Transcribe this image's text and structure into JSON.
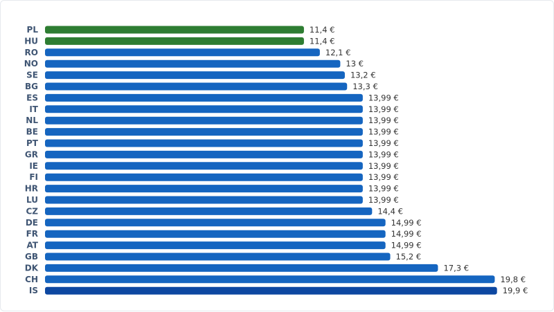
{
  "chart_data": {
    "type": "bar",
    "orientation": "horizontal",
    "title": "",
    "xlabel": "",
    "ylabel": "",
    "xlim": [
      0,
      20
    ],
    "grid": false,
    "legend": "none",
    "unit": "€",
    "categories": [
      "PL",
      "HU",
      "RO",
      "NO",
      "SE",
      "BG",
      "ES",
      "IT",
      "NL",
      "BE",
      "PT",
      "GR",
      "IE",
      "FI",
      "HR",
      "LU",
      "CZ",
      "DE",
      "FR",
      "AT",
      "GB",
      "DK",
      "CH",
      "IS"
    ],
    "values": [
      11.4,
      11.4,
      12.1,
      13,
      13.2,
      13.3,
      13.99,
      13.99,
      13.99,
      13.99,
      13.99,
      13.99,
      13.99,
      13.99,
      13.99,
      13.99,
      14.4,
      14.99,
      14.99,
      14.99,
      15.2,
      17.3,
      19.8,
      19.9
    ],
    "value_labels": [
      "11,4 €",
      "11,4 €",
      "12,1 €",
      "13 €",
      "13,2 €",
      "13,3 €",
      "13,99 €",
      "13,99 €",
      "13,99 €",
      "13,99 €",
      "13,99 €",
      "13,99 €",
      "13,99 €",
      "13,99 €",
      "13,99 €",
      "13,99 €",
      "14,4 €",
      "14,99 €",
      "14,99 €",
      "14,99 €",
      "15,2 €",
      "17,3 €",
      "19,8 €",
      "19,9 €"
    ],
    "bar_colors": [
      "#2e7d32",
      "#2e7d32",
      "#1565c0",
      "#1565c0",
      "#1565c0",
      "#1565c0",
      "#1565c0",
      "#1565c0",
      "#1565c0",
      "#1565c0",
      "#1565c0",
      "#1565c0",
      "#1565c0",
      "#1565c0",
      "#1565c0",
      "#1565c0",
      "#1565c0",
      "#1565c0",
      "#1565c0",
      "#1565c0",
      "#1565c0",
      "#1565c0",
      "#1565c0",
      "#0d47a1"
    ]
  }
}
